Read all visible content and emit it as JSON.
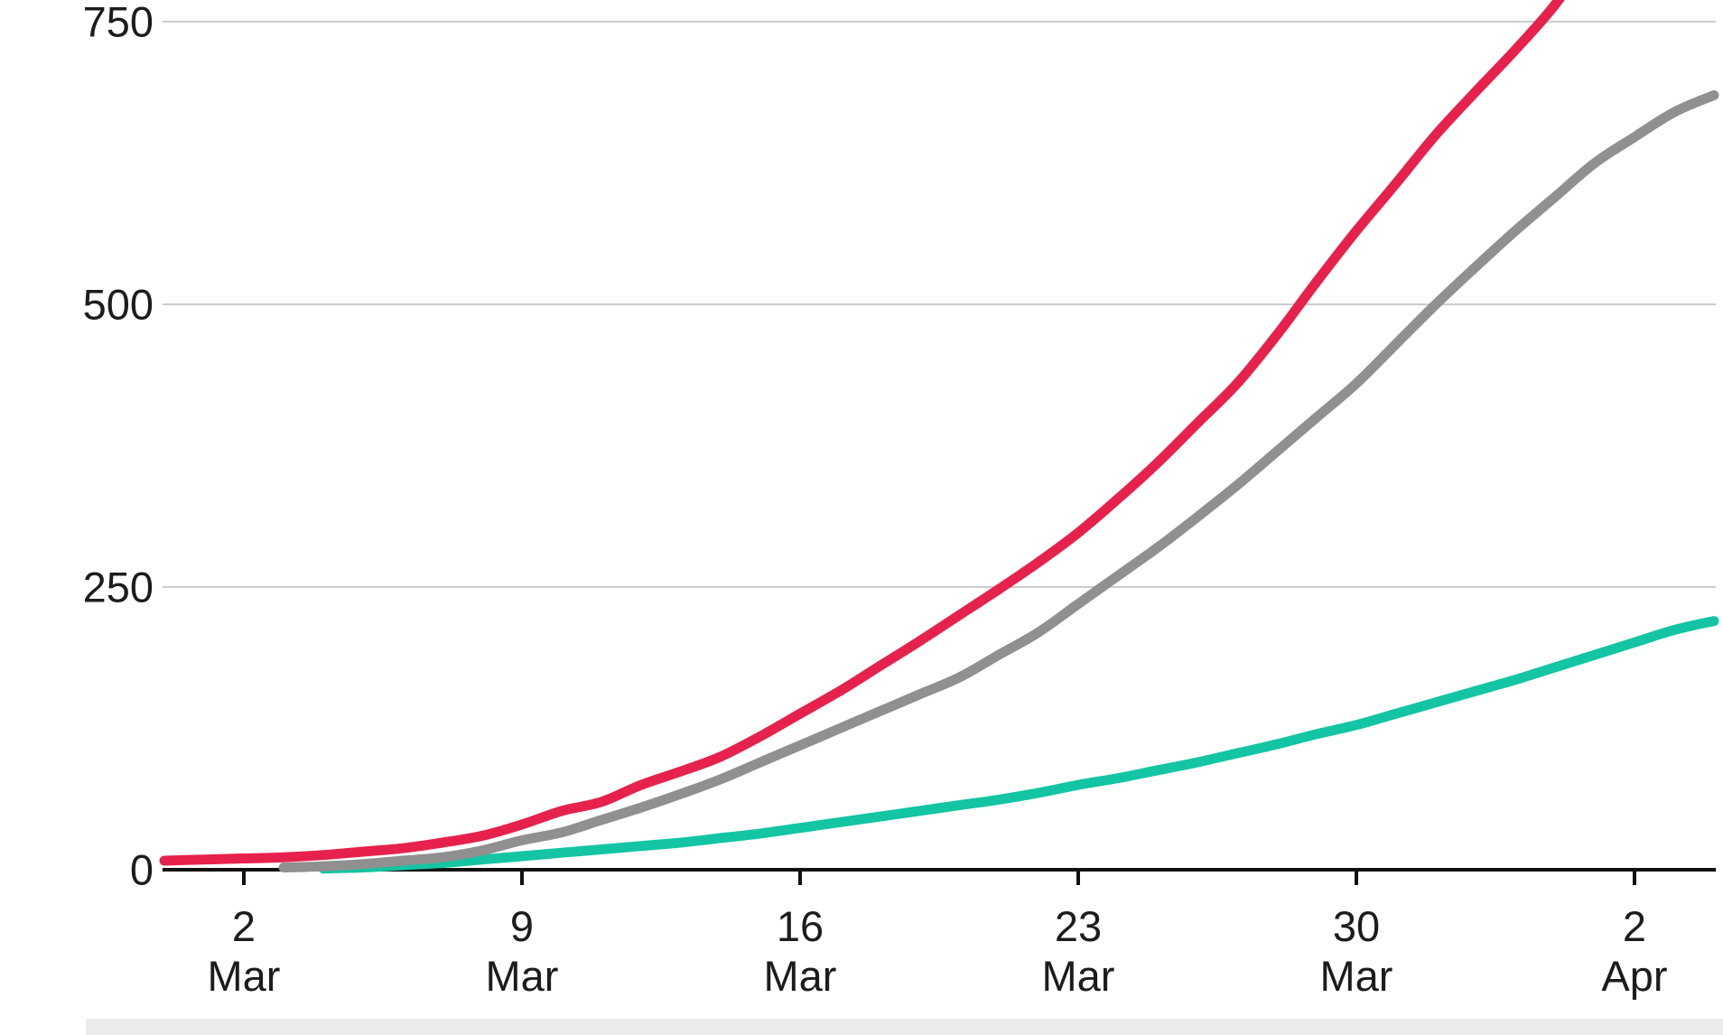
{
  "chart_data": {
    "type": "line",
    "title": "",
    "xlabel": "",
    "ylabel": "",
    "grid": true,
    "legend_position": "none",
    "x_axis": {
      "ticks": [
        {
          "day": "2",
          "month": "Mar",
          "t": 3
        },
        {
          "day": "9",
          "month": "Mar",
          "t": 10
        },
        {
          "day": "16",
          "month": "Mar",
          "t": 17
        },
        {
          "day": "23",
          "month": "Mar",
          "t": 24
        },
        {
          "day": "30",
          "month": "Mar",
          "t": 31
        },
        {
          "day": "2",
          "month": "Apr",
          "t": 38
        }
      ]
    },
    "y_axis": {
      "ticks": [
        {
          "value": 0,
          "label": "0"
        },
        {
          "value": 250,
          "label": "250"
        },
        {
          "value": 500,
          "label": "500"
        },
        {
          "value": 750,
          "label": "750"
        }
      ],
      "visible_range": [
        0,
        750
      ]
    },
    "series": [
      {
        "id": "line-teal",
        "color": "#13c5a3",
        "points": [
          [
            5,
            1
          ],
          [
            6,
            2
          ],
          [
            7,
            4
          ],
          [
            8,
            6
          ],
          [
            9,
            9
          ],
          [
            10,
            12
          ],
          [
            11,
            15
          ],
          [
            12,
            18
          ],
          [
            13,
            21
          ],
          [
            14,
            24
          ],
          [
            15,
            28
          ],
          [
            16,
            32
          ],
          [
            17,
            37
          ],
          [
            18,
            42
          ],
          [
            19,
            47
          ],
          [
            20,
            52
          ],
          [
            21,
            57
          ],
          [
            22,
            62
          ],
          [
            23,
            68
          ],
          [
            24,
            75
          ],
          [
            25,
            81
          ],
          [
            26,
            88
          ],
          [
            27,
            95
          ],
          [
            28,
            103
          ],
          [
            29,
            111
          ],
          [
            30,
            120
          ],
          [
            31,
            128
          ],
          [
            32,
            138
          ],
          [
            33,
            148
          ],
          [
            34,
            158
          ],
          [
            35,
            168
          ],
          [
            36,
            179
          ],
          [
            37,
            190
          ],
          [
            38,
            201
          ],
          [
            39,
            212
          ],
          [
            40,
            220
          ]
        ]
      },
      {
        "id": "line-gray",
        "color": "#909090",
        "points": [
          [
            4,
            2
          ],
          [
            5,
            3
          ],
          [
            6,
            5
          ],
          [
            7,
            8
          ],
          [
            8,
            11
          ],
          [
            9,
            17
          ],
          [
            10,
            26
          ],
          [
            11,
            33
          ],
          [
            12,
            44
          ],
          [
            13,
            55
          ],
          [
            14,
            67
          ],
          [
            15,
            80
          ],
          [
            16,
            95
          ],
          [
            17,
            110
          ],
          [
            18,
            125
          ],
          [
            19,
            140
          ],
          [
            20,
            155
          ],
          [
            21,
            170
          ],
          [
            22,
            190
          ],
          [
            23,
            210
          ],
          [
            24,
            235
          ],
          [
            25,
            260
          ],
          [
            26,
            285
          ],
          [
            27,
            312
          ],
          [
            28,
            340
          ],
          [
            29,
            370
          ],
          [
            30,
            400
          ],
          [
            31,
            430
          ],
          [
            32,
            465
          ],
          [
            33,
            500
          ],
          [
            34,
            533
          ],
          [
            35,
            565
          ],
          [
            36,
            595
          ],
          [
            37,
            625
          ],
          [
            38,
            648
          ],
          [
            39,
            670
          ],
          [
            40,
            685
          ]
        ]
      },
      {
        "id": "line-red",
        "color": "#e6224c",
        "points": [
          [
            1,
            8
          ],
          [
            2,
            9
          ],
          [
            3,
            10
          ],
          [
            4,
            11
          ],
          [
            5,
            13
          ],
          [
            6,
            16
          ],
          [
            7,
            19
          ],
          [
            8,
            24
          ],
          [
            9,
            30
          ],
          [
            10,
            40
          ],
          [
            11,
            52
          ],
          [
            12,
            60
          ],
          [
            13,
            75
          ],
          [
            14,
            87
          ],
          [
            15,
            100
          ],
          [
            16,
            118
          ],
          [
            17,
            138
          ],
          [
            18,
            158
          ],
          [
            19,
            180
          ],
          [
            20,
            202
          ],
          [
            21,
            225
          ],
          [
            22,
            248
          ],
          [
            23,
            272
          ],
          [
            24,
            298
          ],
          [
            25,
            328
          ],
          [
            26,
            360
          ],
          [
            27,
            395
          ],
          [
            28,
            430
          ],
          [
            29,
            473
          ],
          [
            30,
            520
          ],
          [
            31,
            565
          ],
          [
            32,
            607
          ],
          [
            33,
            650
          ],
          [
            34,
            688
          ],
          [
            35,
            725
          ],
          [
            36,
            765
          ],
          [
            37,
            815
          ]
        ]
      }
    ]
  },
  "colors": {
    "axis": "#111111",
    "grid": "#cccccc",
    "label": "#1c1c1c",
    "bottom_strip": "#ececec"
  }
}
